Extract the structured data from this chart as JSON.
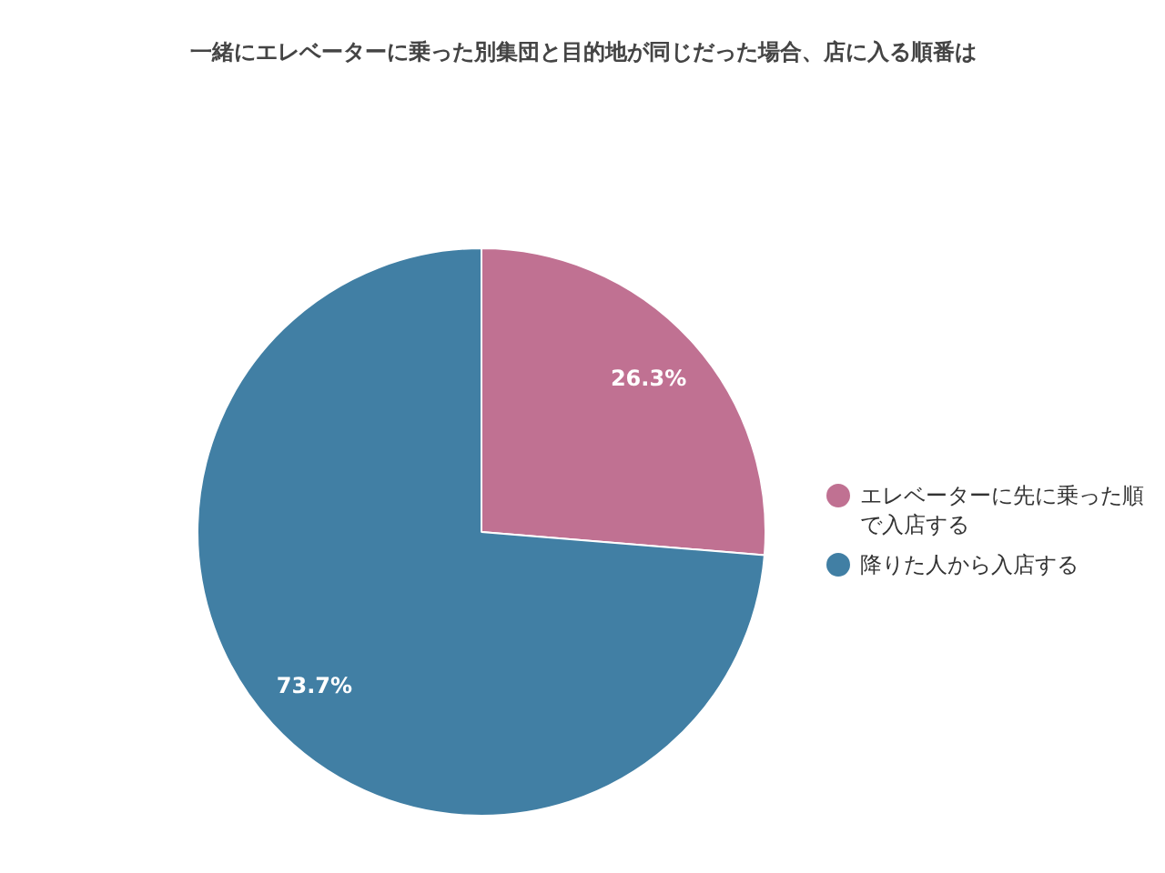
{
  "chart_data": {
    "type": "pie",
    "title": "一緒にエレベーターに乗った別集団と目的地が同じだった場合、店に入る順番は",
    "categories": [
      "エレベーターに先に乗った順で入店する",
      "降りた人から入店する"
    ],
    "values": [
      26.3,
      73.7
    ],
    "colors": [
      "#c07192",
      "#417fa4"
    ],
    "value_labels": [
      "26.3%",
      "73.7%"
    ],
    "legend": "right"
  }
}
